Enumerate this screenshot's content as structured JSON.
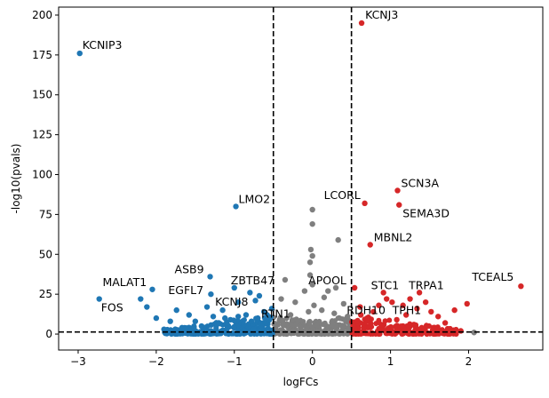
{
  "chart_data": {
    "type": "scatter",
    "xlabel": "logFCs",
    "ylabel": "-log10(pvals)",
    "xlim": [
      -3.25,
      2.95
    ],
    "ylim": [
      -10,
      205
    ],
    "xticks": [
      -3,
      -2,
      -1,
      0,
      1,
      2
    ],
    "yticks": [
      0,
      25,
      50,
      75,
      100,
      125,
      150,
      175,
      200
    ],
    "thresholds": {
      "x": [
        -0.5,
        0.5
      ],
      "y": 1.3
    },
    "colors": {
      "down": "#1f77b4",
      "up": "#d62728",
      "ns": "#7f7f7f",
      "threshold_line": "#000000"
    },
    "labeled_genes": [
      {
        "name": "KCNJ3",
        "x": 0.63,
        "y": 195,
        "group": "up"
      },
      {
        "name": "KCNIP3",
        "x": -2.98,
        "y": 176,
        "group": "down"
      },
      {
        "name": "SCN3A",
        "x": 1.09,
        "y": 90,
        "group": "up"
      },
      {
        "name": "LCORL",
        "x": 0.67,
        "y": 82,
        "group": "up"
      },
      {
        "name": "SEMA3D",
        "x": 1.11,
        "y": 81,
        "group": "up"
      },
      {
        "name": "LMO2",
        "x": -0.98,
        "y": 80,
        "group": "down"
      },
      {
        "name": "MBNL2",
        "x": 0.74,
        "y": 56,
        "group": "up"
      },
      {
        "name": "ASB9",
        "x": -1.31,
        "y": 36,
        "group": "down"
      },
      {
        "name": "TCEAL5",
        "x": 2.67,
        "y": 30,
        "group": "up"
      },
      {
        "name": "ZBTB47",
        "x": -1.0,
        "y": 29,
        "group": "down"
      },
      {
        "name": "MALAT1",
        "x": -2.05,
        "y": 28,
        "group": "down"
      },
      {
        "name": "APOOL",
        "x": 0.54,
        "y": 29,
        "group": "up"
      },
      {
        "name": "EGFL7",
        "x": -1.3,
        "y": 25,
        "group": "down"
      },
      {
        "name": "STC1",
        "x": 0.91,
        "y": 26,
        "group": "up"
      },
      {
        "name": "TRPA1",
        "x": 1.37,
        "y": 26,
        "group": "up"
      },
      {
        "name": "KCNJ8",
        "x": -0.95,
        "y": 20,
        "group": "down"
      },
      {
        "name": "RTN1",
        "x": -0.52,
        "y": 16,
        "group": "down"
      },
      {
        "name": "RDH10",
        "x": 0.61,
        "y": 17,
        "group": "up"
      },
      {
        "name": "TPH1",
        "x": 1.16,
        "y": 18,
        "group": "up"
      },
      {
        "name": "FOS",
        "x": -2.73,
        "y": 22,
        "group": "down"
      }
    ],
    "other_points": {
      "ns": [
        [
          0.0,
          78
        ],
        [
          0.0,
          69
        ],
        [
          -0.02,
          53
        ],
        [
          0.0,
          49
        ],
        [
          0.33,
          59
        ],
        [
          -0.03,
          45
        ],
        [
          -0.35,
          34
        ],
        [
          -0.03,
          37
        ],
        [
          0.0,
          31
        ],
        [
          0.2,
          27
        ],
        [
          0.3,
          29
        ],
        [
          -0.1,
          27
        ],
        [
          0.15,
          23
        ],
        [
          -0.22,
          20
        ],
        [
          0.4,
          19
        ],
        [
          -0.4,
          22
        ],
        [
          0.02,
          18
        ],
        [
          0.12,
          15
        ],
        [
          -0.05,
          14
        ],
        [
          0.28,
          13
        ],
        [
          -0.28,
          12
        ],
        [
          0.45,
          11
        ],
        [
          2.07,
          1
        ]
      ],
      "down": [
        [
          -2.2,
          22
        ],
        [
          -2.12,
          17
        ],
        [
          -2.0,
          10
        ],
        [
          -1.82,
          8
        ],
        [
          -1.74,
          15
        ],
        [
          -1.67,
          4
        ],
        [
          -1.58,
          12
        ],
        [
          -1.5,
          8
        ],
        [
          -1.42,
          5
        ],
        [
          -1.35,
          17
        ],
        [
          -1.27,
          11
        ],
        [
          -1.15,
          15
        ],
        [
          -0.8,
          26
        ],
        [
          -0.73,
          21
        ],
        [
          -0.68,
          24
        ],
        [
          -0.62,
          14
        ],
        [
          -1.12,
          10
        ],
        [
          -1.05,
          9
        ],
        [
          -0.95,
          11
        ],
        [
          -0.85,
          12
        ],
        [
          -0.78,
          8
        ],
        [
          -0.7,
          10
        ],
        [
          -0.6,
          7
        ],
        [
          -1.9,
          3
        ],
        [
          -1.3,
          2
        ],
        [
          -1.2,
          7
        ],
        [
          -1.0,
          4
        ],
        [
          -0.88,
          6
        ],
        [
          -0.75,
          3
        ],
        [
          -0.65,
          5
        ],
        [
          -0.55,
          9
        ],
        [
          -0.58,
          12
        ]
      ],
      "up": [
        [
          1.98,
          19
        ],
        [
          1.82,
          15
        ],
        [
          1.7,
          7
        ],
        [
          1.61,
          11
        ],
        [
          1.52,
          14
        ],
        [
          1.45,
          20
        ],
        [
          1.34,
          16
        ],
        [
          1.25,
          22
        ],
        [
          1.2,
          12
        ],
        [
          1.02,
          20
        ],
        [
          0.95,
          22
        ],
        [
          0.85,
          18
        ],
        [
          0.78,
          14
        ],
        [
          0.7,
          10
        ],
        [
          0.62,
          12
        ],
        [
          0.57,
          8
        ],
        [
          1.08,
          9
        ],
        [
          1.4,
          4
        ],
        [
          1.75,
          3
        ],
        [
          1.9,
          2
        ],
        [
          0.88,
          6
        ],
        [
          0.52,
          5
        ],
        [
          1.3,
          6
        ],
        [
          0.66,
          4
        ]
      ]
    }
  }
}
